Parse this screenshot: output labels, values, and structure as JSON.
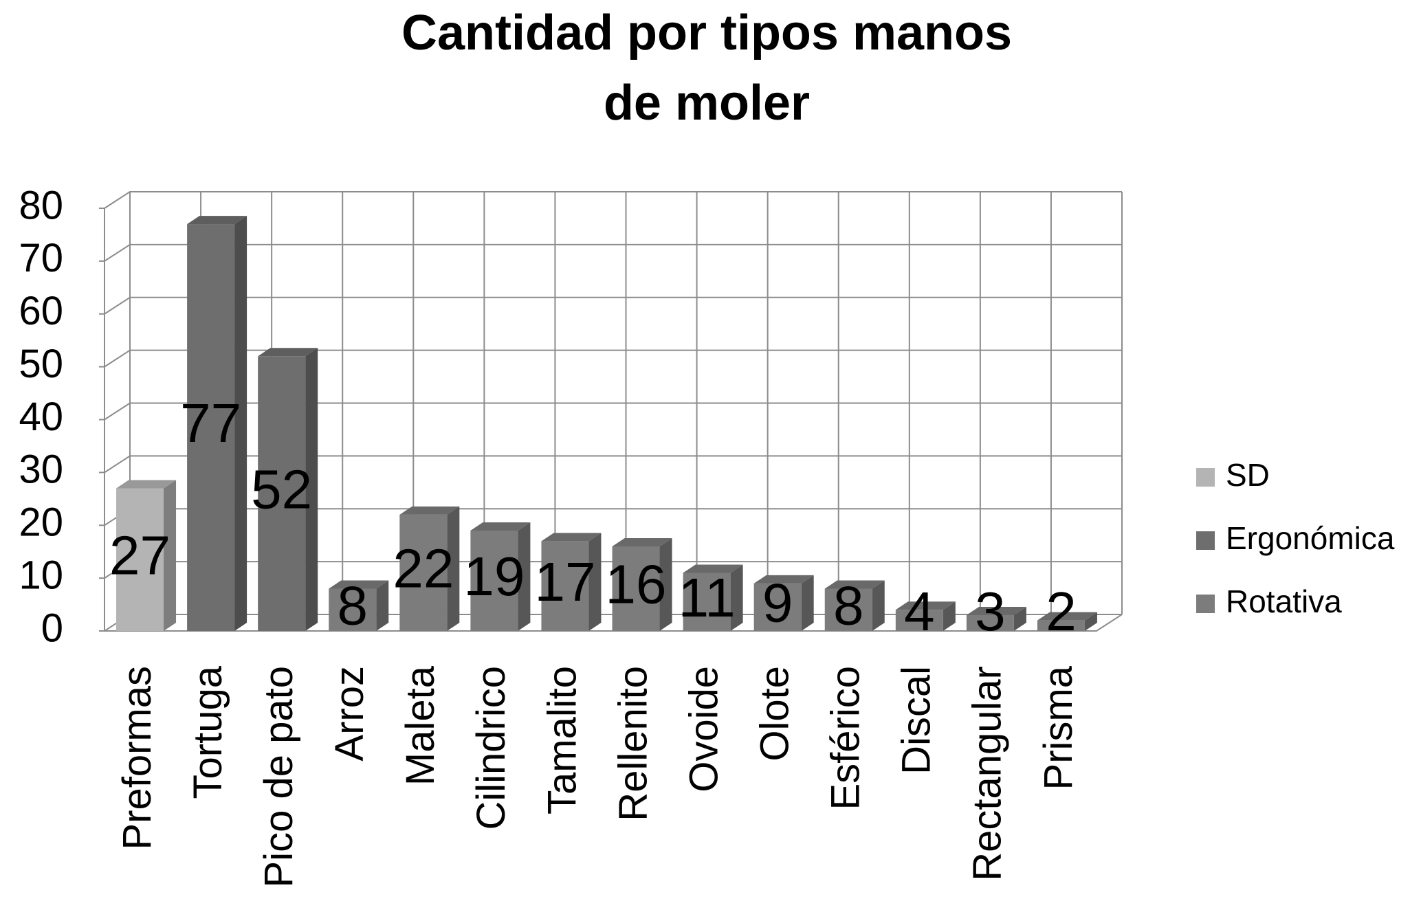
{
  "chart_data": {
    "type": "bar",
    "stacked": true,
    "title": "Cantidad por tipos manos de moler",
    "categories": [
      "Preformas",
      "Tortuga",
      "Pico de pato",
      "Arroz",
      "Maleta",
      "Cilindrico",
      "Tamalito",
      "Rellenito",
      "Ovoide",
      "Olote",
      "Esférico",
      "Discal",
      "Rectangular",
      "Prisma"
    ],
    "series": [
      {
        "name": "SD",
        "color": "#b4b4b4",
        "values": [
          27,
          null,
          null,
          null,
          null,
          null,
          null,
          null,
          null,
          null,
          null,
          null,
          null,
          null
        ]
      },
      {
        "name": "Ergonómica",
        "color": "#6e6e6e",
        "values": [
          null,
          77,
          52,
          null,
          null,
          null,
          null,
          null,
          null,
          null,
          null,
          null,
          null,
          null
        ]
      },
      {
        "name": "Rotativa",
        "color": "#7c7c7c",
        "values": [
          null,
          null,
          null,
          8,
          22,
          19,
          17,
          16,
          11,
          9,
          8,
          4,
          3,
          2
        ]
      }
    ],
    "ylim": [
      0,
      80
    ],
    "yticks": [
      0,
      10,
      20,
      30,
      40,
      50,
      60,
      70,
      80
    ],
    "grid": true,
    "legend": "right"
  }
}
